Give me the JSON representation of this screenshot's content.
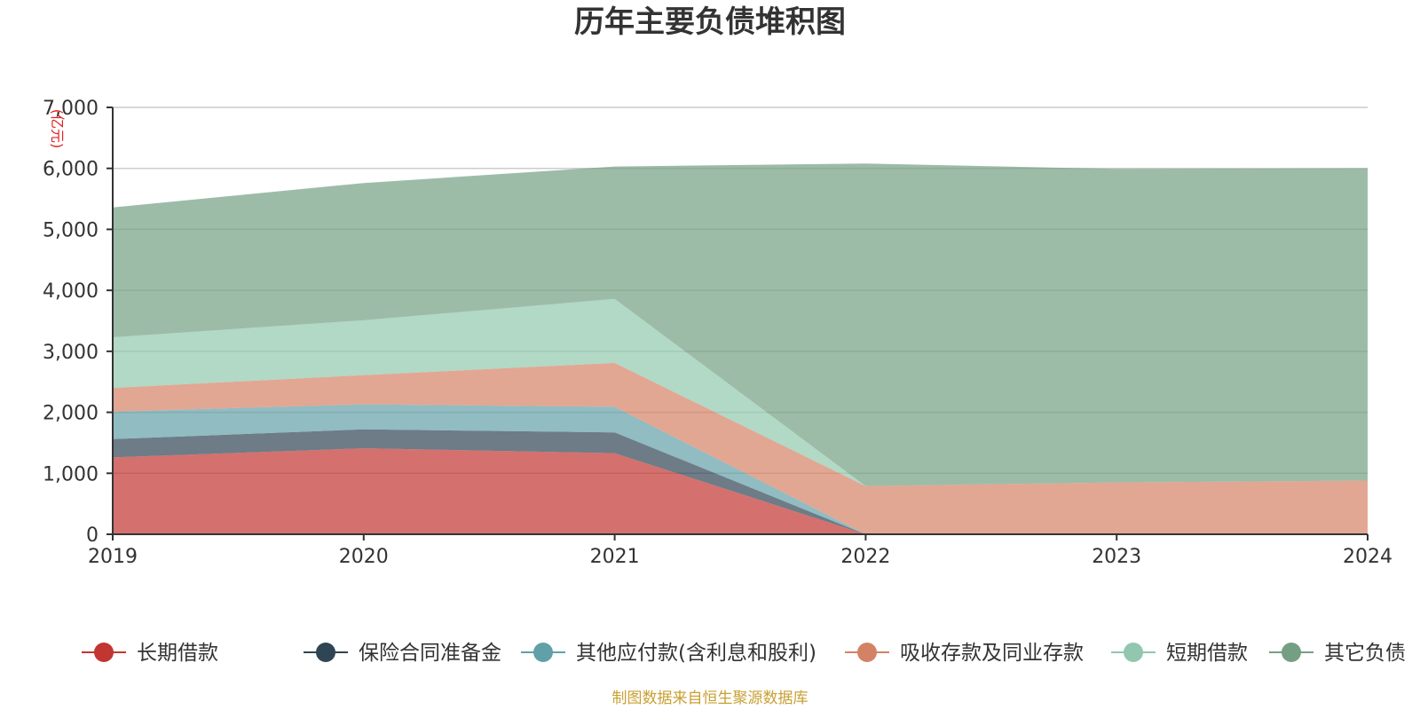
{
  "chart_data": {
    "type": "area",
    "stacked": true,
    "title": "历年主要负债堆积图",
    "unit_label": "(亿元)",
    "x": [
      "2019",
      "2020",
      "2021",
      "2022",
      "2023",
      "2024"
    ],
    "ylim": [
      0,
      7000
    ],
    "yticks": [
      "0",
      "1,000",
      "2,000",
      "3,000",
      "4,000",
      "5,000",
      "6,000",
      "7,000"
    ],
    "ytick_values": [
      0,
      1000,
      2000,
      3000,
      4000,
      5000,
      6000,
      7000
    ],
    "grid": true,
    "legend_position": "bottom",
    "series": [
      {
        "name": "长期借款",
        "color": "#c23531",
        "values": [
          1260,
          1410,
          1330,
          0,
          0,
          0
        ]
      },
      {
        "name": "保险合同准备金",
        "color": "#2f4554",
        "values": [
          300,
          310,
          340,
          0,
          0,
          0
        ]
      },
      {
        "name": "其他应付款(含利息和股利)",
        "color": "#61a0a8",
        "values": [
          450,
          410,
          420,
          0,
          0,
          0
        ]
      },
      {
        "name": "吸收存款及同业存款",
        "color": "#d48265",
        "values": [
          390,
          480,
          720,
          790,
          850,
          880
        ]
      },
      {
        "name": "短期借款",
        "color": "#91c7ae",
        "values": [
          830,
          900,
          1050,
          0,
          0,
          0
        ]
      },
      {
        "name": "其它负债",
        "color": "#749f83",
        "values": [
          2130,
          2250,
          2170,
          5290,
          5140,
          5120
        ]
      }
    ]
  },
  "footer": {
    "source": "制图数据来自恒生聚源数据库"
  }
}
